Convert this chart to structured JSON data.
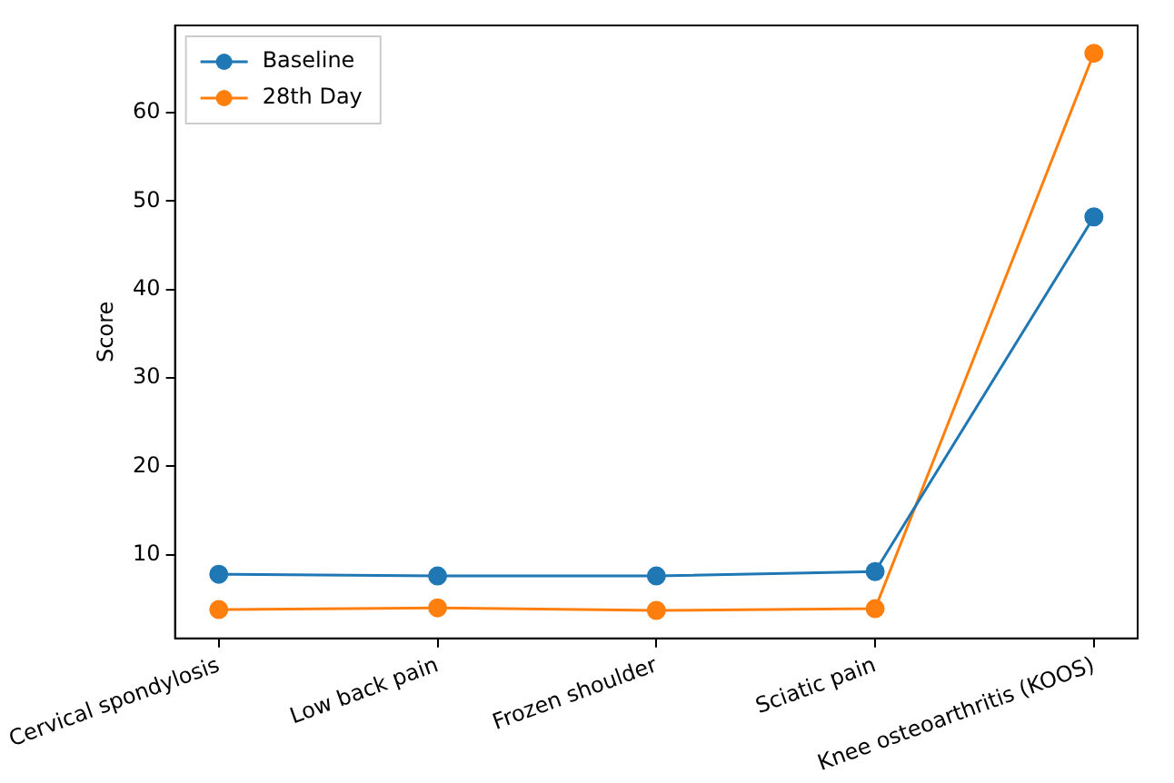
{
  "chart_data": {
    "type": "line",
    "ylabel": "Score",
    "categories": [
      "Cervical spondylosis",
      "Low back pain",
      "Frozen shoulder",
      "Sciatic pain",
      "Knee osteoarthritis (KOOS)"
    ],
    "series": [
      {
        "name": "Baseline",
        "color": "#1f77b4",
        "values": [
          7.8,
          7.6,
          7.6,
          8.1,
          48.2
        ]
      },
      {
        "name": "28th Day",
        "color": "#ff7f0e",
        "values": [
          3.8,
          4.0,
          3.7,
          3.9,
          66.7
        ]
      }
    ],
    "ylim": [
      0.55,
      69.85
    ],
    "yticks": [
      10,
      20,
      30,
      40,
      50,
      60
    ],
    "grid": false,
    "legend": "top left",
    "marker": "circle",
    "line_style": "solid"
  }
}
